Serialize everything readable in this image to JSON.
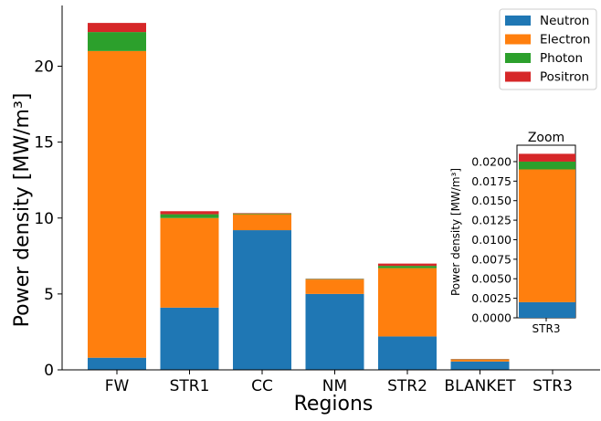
{
  "chart_data": [
    {
      "type": "bar",
      "stacked": true,
      "categories": [
        "FW",
        "STR1",
        "CC",
        "NM",
        "STR2",
        "BLANKET",
        "STR3"
      ],
      "series": [
        {
          "name": "Neutron",
          "color": "#1f77b4",
          "values": [
            0.8,
            4.1,
            9.2,
            5.0,
            2.2,
            0.55,
            0.002
          ]
        },
        {
          "name": "Electron",
          "color": "#ff7f0e",
          "values": [
            20.2,
            5.9,
            1.05,
            0.95,
            4.5,
            0.13,
            0.017
          ]
        },
        {
          "name": "Photon",
          "color": "#2ca02c",
          "values": [
            1.25,
            0.25,
            0.05,
            0.03,
            0.15,
            0.02,
            0.001
          ]
        },
        {
          "name": "Positron",
          "color": "#d62728",
          "values": [
            0.6,
            0.2,
            0.03,
            0.02,
            0.15,
            0.02,
            0.001
          ]
        }
      ],
      "xlabel": "Regions",
      "ylabel": "Power density [MW/m³]",
      "ylim": [
        0,
        24
      ],
      "yticks": [
        "0",
        "5",
        "10",
        "15",
        "20"
      ],
      "legend": {
        "placement": "top-right",
        "entries": [
          "Neutron",
          "Electron",
          "Photon",
          "Positron"
        ]
      },
      "grid": false
    },
    {
      "type": "bar",
      "stacked": true,
      "title": "Zoom",
      "categories": [
        "STR3"
      ],
      "series": [
        {
          "name": "Neutron",
          "color": "#1f77b4",
          "values": [
            0.002
          ]
        },
        {
          "name": "Electron",
          "color": "#ff7f0e",
          "values": [
            0.017
          ]
        },
        {
          "name": "Photon",
          "color": "#2ca02c",
          "values": [
            0.001
          ]
        },
        {
          "name": "Positron",
          "color": "#d62728",
          "values": [
            0.001
          ]
        }
      ],
      "ylabel": "Power density [MW/m³]",
      "ylim": [
        0,
        0.0221
      ],
      "yticks": [
        "0.0000",
        "0.0025",
        "0.0050",
        "0.0075",
        "0.0100",
        "0.0125",
        "0.0150",
        "0.0175",
        "0.0200"
      ],
      "grid": false
    }
  ]
}
